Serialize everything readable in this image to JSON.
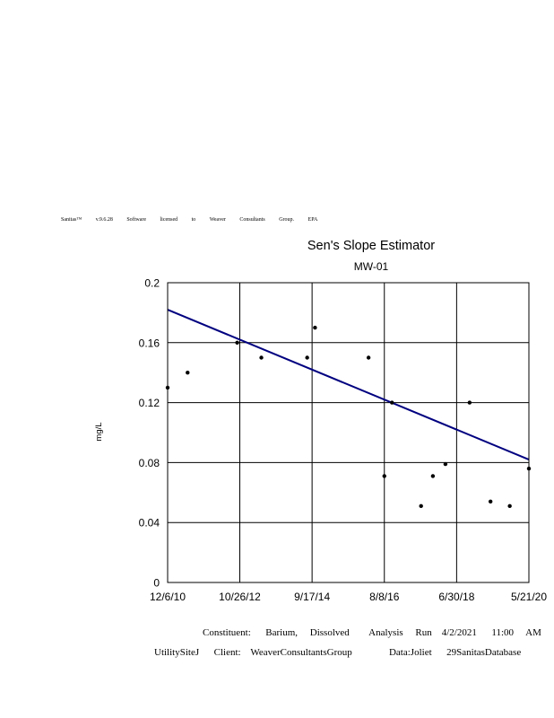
{
  "license_line": "Sanitas™ v.9.6.28 Software licensed to Weaver Consultants Group. EPA",
  "footer": {
    "line1": "Constituent:      Barium,     Dissolved        Analysis     Run    4/2/2021      11:00     AM",
    "line2": "UtilitySiteJ      Client:    WeaverConsultantsGroup               Data:Joliet      29SanitasDatabase"
  },
  "chart_data": {
    "type": "scatter",
    "title": "Sen's Slope Estimator",
    "subtitle": "MW-01",
    "xlabel": "",
    "ylabel": "mg/L",
    "ylim": [
      0,
      0.2
    ],
    "y_ticks": [
      0,
      0.04,
      0.08,
      0.12,
      0.16,
      0.2
    ],
    "y_tick_labels": [
      "0",
      "0.04",
      "0.08",
      "0.12",
      "0.16",
      "0.2"
    ],
    "xlim": [
      "2010-12-06",
      "2020-05-21"
    ],
    "x_ticks": [
      "2010-12-06",
      "2012-10-26",
      "2014-09-17",
      "2016-08-08",
      "2018-06-30",
      "2020-05-21"
    ],
    "x_tick_labels": [
      "12/6/10",
      "10/26/12",
      "9/17/14",
      "8/8/16",
      "6/30/18",
      "5/21/20"
    ],
    "grid": true,
    "legend": "none",
    "point_color": "#000000",
    "trend_color": "#000080",
    "points": [
      {
        "x": "2010-12-06",
        "y": 0.13
      },
      {
        "x": "2011-06-15",
        "y": 0.14
      },
      {
        "x": "2012-10-01",
        "y": 0.16
      },
      {
        "x": "2013-05-20",
        "y": 0.15
      },
      {
        "x": "2014-08-01",
        "y": 0.15
      },
      {
        "x": "2014-10-15",
        "y": 0.17
      },
      {
        "x": "2016-03-10",
        "y": 0.15
      },
      {
        "x": "2016-08-08",
        "y": 0.071
      },
      {
        "x": "2016-10-20",
        "y": 0.12
      },
      {
        "x": "2017-07-25",
        "y": 0.051
      },
      {
        "x": "2017-11-15",
        "y": 0.071
      },
      {
        "x": "2018-03-15",
        "y": 0.079
      },
      {
        "x": "2018-11-01",
        "y": 0.12
      },
      {
        "x": "2019-05-20",
        "y": 0.054
      },
      {
        "x": "2019-11-20",
        "y": 0.051
      },
      {
        "x": "2020-05-21",
        "y": 0.076
      }
    ],
    "trend_line": [
      {
        "x": "2010-12-06",
        "y": 0.182
      },
      {
        "x": "2020-05-21",
        "y": 0.082
      }
    ]
  }
}
